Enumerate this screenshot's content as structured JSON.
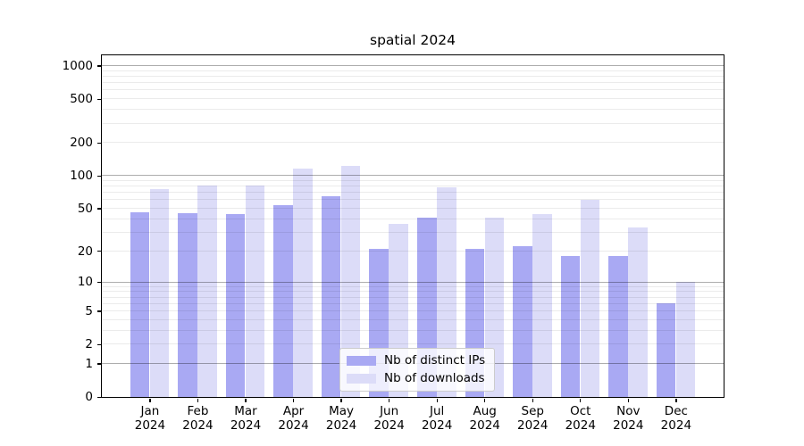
{
  "chart_data": {
    "type": "bar",
    "title": "spatial 2024",
    "categories": [
      "Jan 2024",
      "Feb 2024",
      "Mar 2024",
      "Apr 2024",
      "May 2024",
      "Jun 2024",
      "Jul 2024",
      "Aug 2024",
      "Sep 2024",
      "Oct 2024",
      "Nov 2024",
      "Dec 2024"
    ],
    "series": [
      {
        "name": "Nb of distinct IPs",
        "color": "#a9a9f3",
        "values": [
          46,
          45,
          44,
          54,
          65,
          21,
          41,
          21,
          22,
          18,
          18,
          6
        ]
      },
      {
        "name": "Nb of downloads",
        "color": "#dcdcf8",
        "values": [
          75,
          81,
          81,
          116,
          123,
          36,
          78,
          41,
          44,
          60,
          33,
          10
        ]
      }
    ],
    "y_axis": {
      "scale": "log10(1+value)",
      "tick_labels": [
        "0",
        "1",
        "2",
        "5",
        "10",
        "20",
        "50",
        "100",
        "200",
        "500",
        "1000"
      ],
      "tick_values": [
        0,
        1,
        2,
        5,
        10,
        20,
        50,
        100,
        200,
        500,
        1000
      ],
      "major_gridlines": [
        1,
        10,
        100,
        1000
      ],
      "minor_gridline_decades": [
        1,
        10,
        100
      ],
      "top_value": 1240
    },
    "legend": {
      "position": "lower center"
    },
    "grid": true,
    "colors": {
      "major_grid": "rgba(0,0,0,0.32)",
      "minor_grid": "rgba(0,0,0,0.08)",
      "axis": "#000000"
    }
  }
}
